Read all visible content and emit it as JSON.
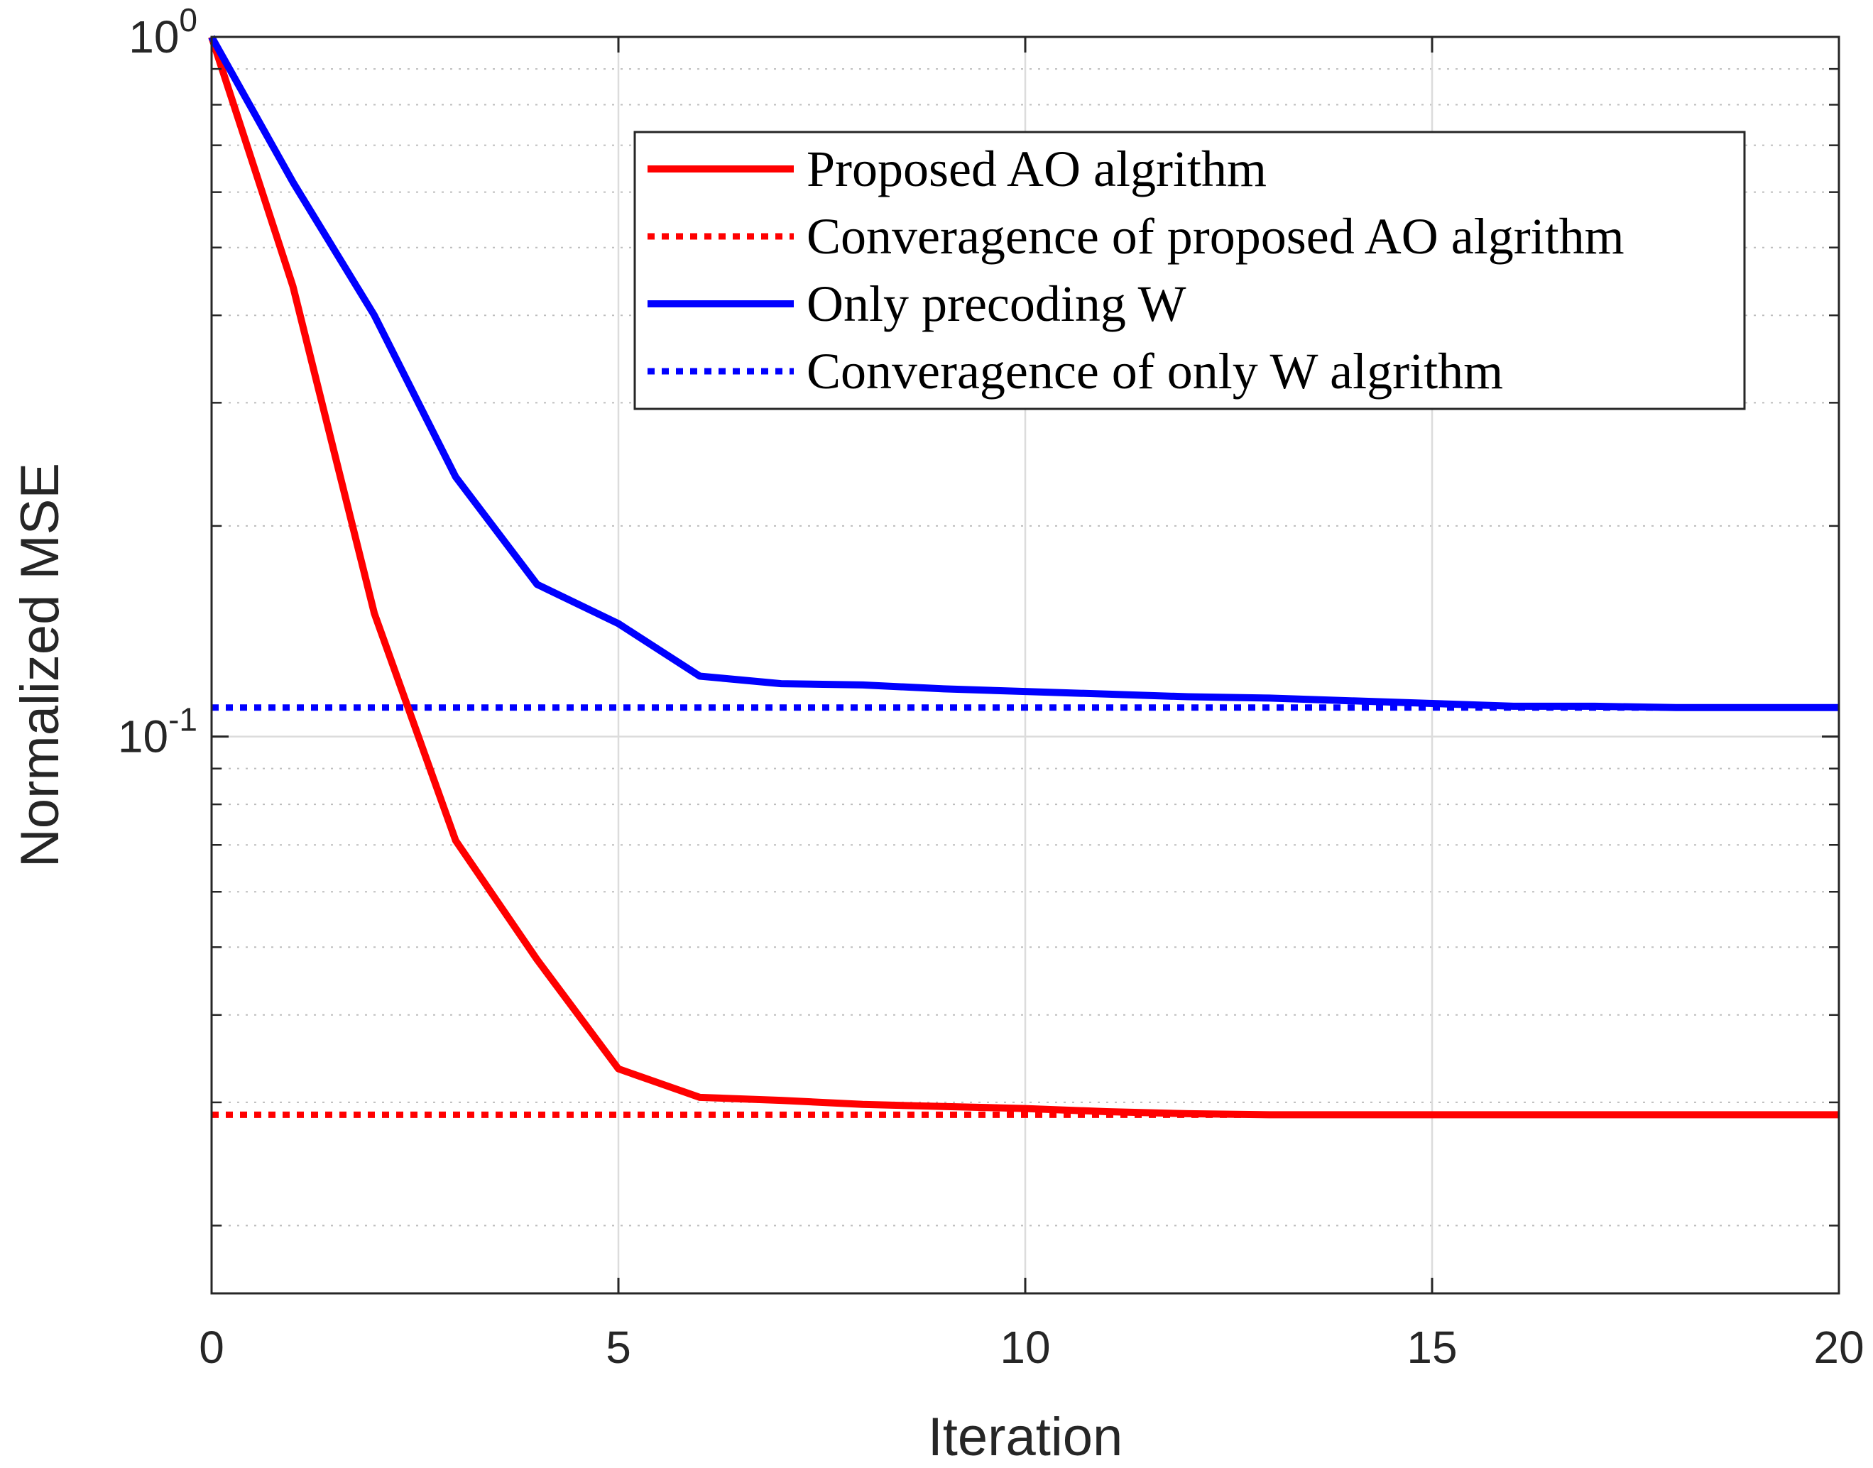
{
  "chart_data": {
    "type": "line",
    "title": "",
    "xlabel": "Iteration",
    "ylabel": "Normalized MSE",
    "xlim": [
      0,
      20
    ],
    "ylim": [
      0.016,
      1
    ],
    "yscale": "log",
    "grid": true,
    "xticks": [
      0,
      5,
      10,
      15,
      20
    ],
    "xtick_labels": [
      "0",
      "5",
      "10",
      "15",
      "20"
    ],
    "yticks": [
      {
        "value": 1,
        "base": "10",
        "exp": "0"
      },
      {
        "value": 0.1,
        "base": "10",
        "exp": "-1"
      }
    ],
    "legend_position": "top-right",
    "series": [
      {
        "name": "Proposed AO algrithm",
        "style": "solid",
        "color": "#ff0000",
        "x": [
          0,
          1,
          2,
          3,
          4,
          5,
          6,
          7,
          8,
          9,
          10,
          11,
          12,
          13,
          14,
          15,
          16,
          17,
          18,
          19,
          20
        ],
        "y": [
          1.0,
          0.44,
          0.15,
          0.071,
          0.048,
          0.0335,
          0.0305,
          0.0302,
          0.0298,
          0.0296,
          0.0294,
          0.0291,
          0.0289,
          0.0288,
          0.0288,
          0.0288,
          0.0288,
          0.0288,
          0.0288,
          0.0288,
          0.0288
        ]
      },
      {
        "name": "Converagence of proposed AO algrithm",
        "style": "dotted",
        "color": "#ff0000",
        "x": [
          0,
          20
        ],
        "y": [
          0.0288,
          0.0288
        ]
      },
      {
        "name": "Only precoding W",
        "style": "solid",
        "color": "#0000ff",
        "x": [
          0,
          1,
          2,
          3,
          4,
          5,
          6,
          7,
          8,
          9,
          10,
          11,
          12,
          13,
          14,
          15,
          16,
          17,
          18,
          19,
          20
        ],
        "y": [
          1.0,
          0.62,
          0.4,
          0.235,
          0.165,
          0.145,
          0.122,
          0.119,
          0.1185,
          0.117,
          0.116,
          0.115,
          0.114,
          0.1135,
          0.1125,
          0.1115,
          0.1105,
          0.1105,
          0.11,
          0.11,
          0.11
        ]
      },
      {
        "name": "Converagence of only W algrithm",
        "style": "dotted",
        "color": "#0000ff",
        "x": [
          0,
          20
        ],
        "y": [
          0.11,
          0.11
        ]
      }
    ]
  }
}
